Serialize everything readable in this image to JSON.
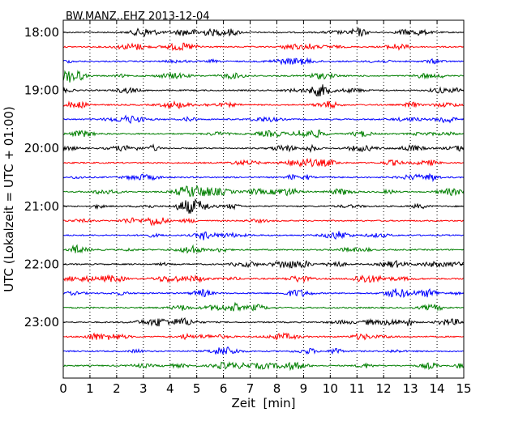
{
  "chart_data": {
    "type": "line",
    "title": "BW.MANZ..EHZ 2013-12-04",
    "xlabel": "Zeit  [min]",
    "ylabel": "UTC (Lokalzeit = UTC + 01:00)",
    "xlim": [
      0,
      15
    ],
    "x_ticks": [
      "0",
      "1",
      "2",
      "3",
      "4",
      "5",
      "6",
      "7",
      "8",
      "9",
      "10",
      "11",
      "12",
      "13",
      "14",
      "15"
    ],
    "y_ticks": [
      "18:00",
      "19:00",
      "20:00",
      "21:00",
      "22:00",
      "23:00"
    ],
    "grid": {
      "x": true,
      "y": false
    },
    "trace_colors": [
      "#000000",
      "#ff0000",
      "#0000ff",
      "#007f00"
    ],
    "traces": [
      {
        "start": "18:00"
      },
      {
        "start": "18:15"
      },
      {
        "start": "18:30"
      },
      {
        "start": "18:45"
      },
      {
        "start": "19:00"
      },
      {
        "start": "19:15"
      },
      {
        "start": "19:30"
      },
      {
        "start": "19:45"
      },
      {
        "start": "20:00"
      },
      {
        "start": "20:15"
      },
      {
        "start": "20:30"
      },
      {
        "start": "20:45"
      },
      {
        "start": "21:00"
      },
      {
        "start": "21:15"
      },
      {
        "start": "21:30"
      },
      {
        "start": "21:45"
      },
      {
        "start": "22:00"
      },
      {
        "start": "22:15"
      },
      {
        "start": "22:30"
      },
      {
        "start": "22:45"
      },
      {
        "start": "23:00"
      },
      {
        "start": "23:15"
      },
      {
        "start": "23:30"
      },
      {
        "start": "23:45"
      }
    ]
  }
}
